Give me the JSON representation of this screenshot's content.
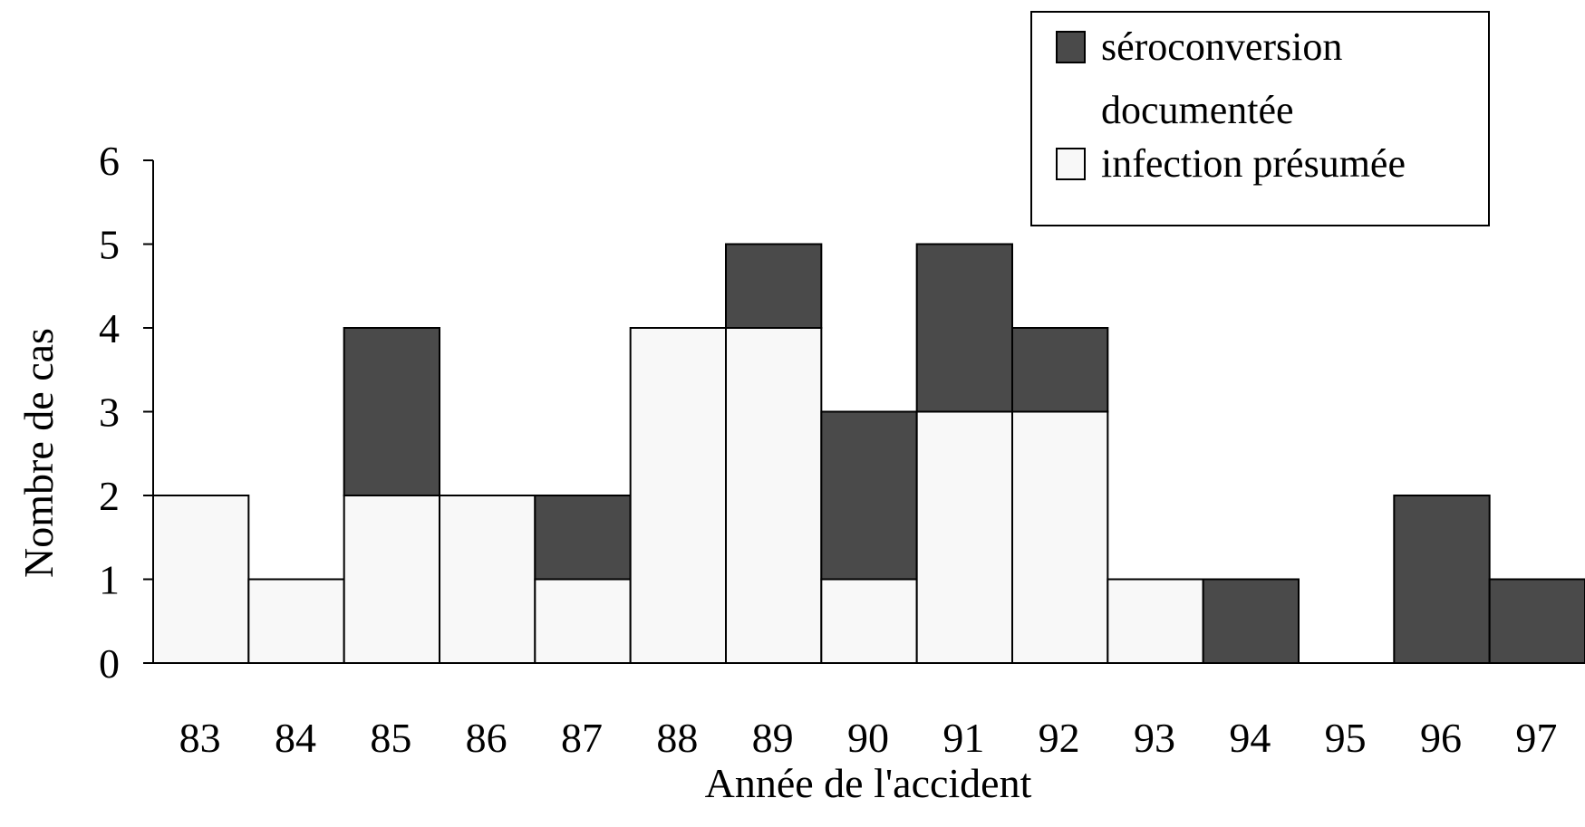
{
  "chart_data": {
    "type": "bar",
    "stacked": true,
    "title": "",
    "xlabel": "Année de l'accident",
    "ylabel": "Nombre de cas",
    "ylim": [
      0,
      6
    ],
    "yticks": [
      "0",
      "1",
      "2",
      "3",
      "4",
      "5",
      "6"
    ],
    "categories": [
      "83",
      "84",
      "85",
      "86",
      "87",
      "88",
      "89",
      "90",
      "91",
      "92",
      "93",
      "94",
      "95",
      "96",
      "97"
    ],
    "series": [
      {
        "name": "infection présumée",
        "color": "#f8f8f8",
        "values": [
          2,
          1,
          2,
          2,
          1,
          4,
          4,
          1,
          3,
          3,
          1,
          0,
          0,
          0,
          0
        ]
      },
      {
        "name": "séroconversion documentée",
        "color": "#4a4a4a",
        "values": [
          0,
          0,
          2,
          0,
          1,
          0,
          1,
          2,
          2,
          1,
          0,
          1,
          0,
          2,
          1
        ]
      }
    ],
    "grid": false,
    "legend_position": "top-right"
  },
  "legend": {
    "items": [
      {
        "line1": "séroconversion",
        "line2": "documentée",
        "color": "#4a4a4a"
      },
      {
        "line1": "infection présumée",
        "line2": "",
        "color": "#f8f8f8"
      }
    ]
  }
}
